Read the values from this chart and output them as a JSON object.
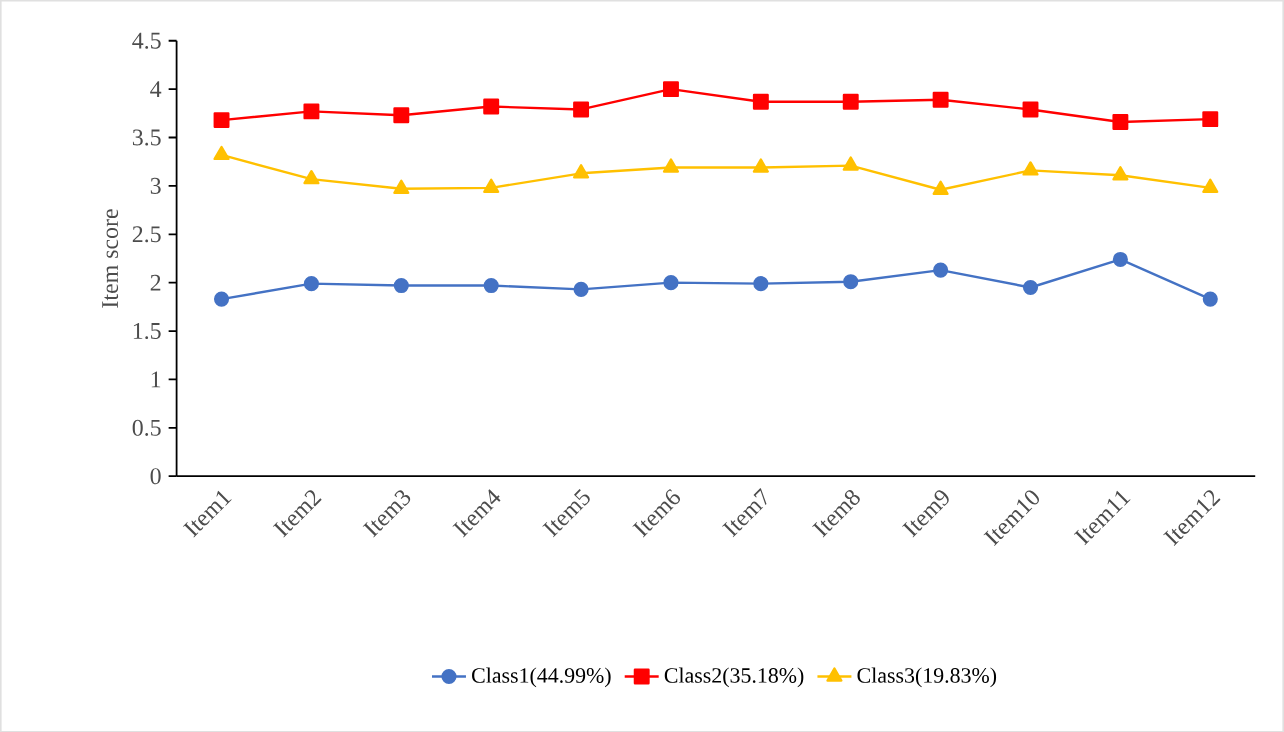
{
  "chart_data": {
    "type": "line",
    "ylabel": "Item score",
    "categories": [
      "Item1",
      "Item2",
      "Item3",
      "Item4",
      "Item5",
      "Item6",
      "Item7",
      "Item8",
      "Item9",
      "Item10",
      "Item11",
      "Item12"
    ],
    "series": [
      {
        "name": "Class1(44.99%)",
        "color": "#4472c4",
        "marker": "circle",
        "values": [
          1.83,
          1.99,
          1.97,
          1.97,
          1.93,
          2.0,
          1.99,
          2.01,
          2.13,
          1.95,
          2.24,
          1.83
        ]
      },
      {
        "name": "Class2(35.18%)",
        "color": "#ff0000",
        "marker": "square",
        "values": [
          3.68,
          3.77,
          3.73,
          3.82,
          3.79,
          4.0,
          3.87,
          3.87,
          3.89,
          3.79,
          3.66,
          3.69
        ]
      },
      {
        "name": "Class3(19.83%)",
        "color": "#ffc000",
        "marker": "triangle",
        "values": [
          3.32,
          3.07,
          2.97,
          2.98,
          3.13,
          3.19,
          3.19,
          3.21,
          2.96,
          3.16,
          3.11,
          2.98
        ]
      }
    ],
    "ylim": [
      0,
      4.5
    ],
    "yticks": [
      0,
      0.5,
      1,
      1.5,
      2,
      2.5,
      3,
      3.5,
      4,
      4.5
    ],
    "grid": false,
    "legend": "bottom",
    "line_style": "solid"
  }
}
